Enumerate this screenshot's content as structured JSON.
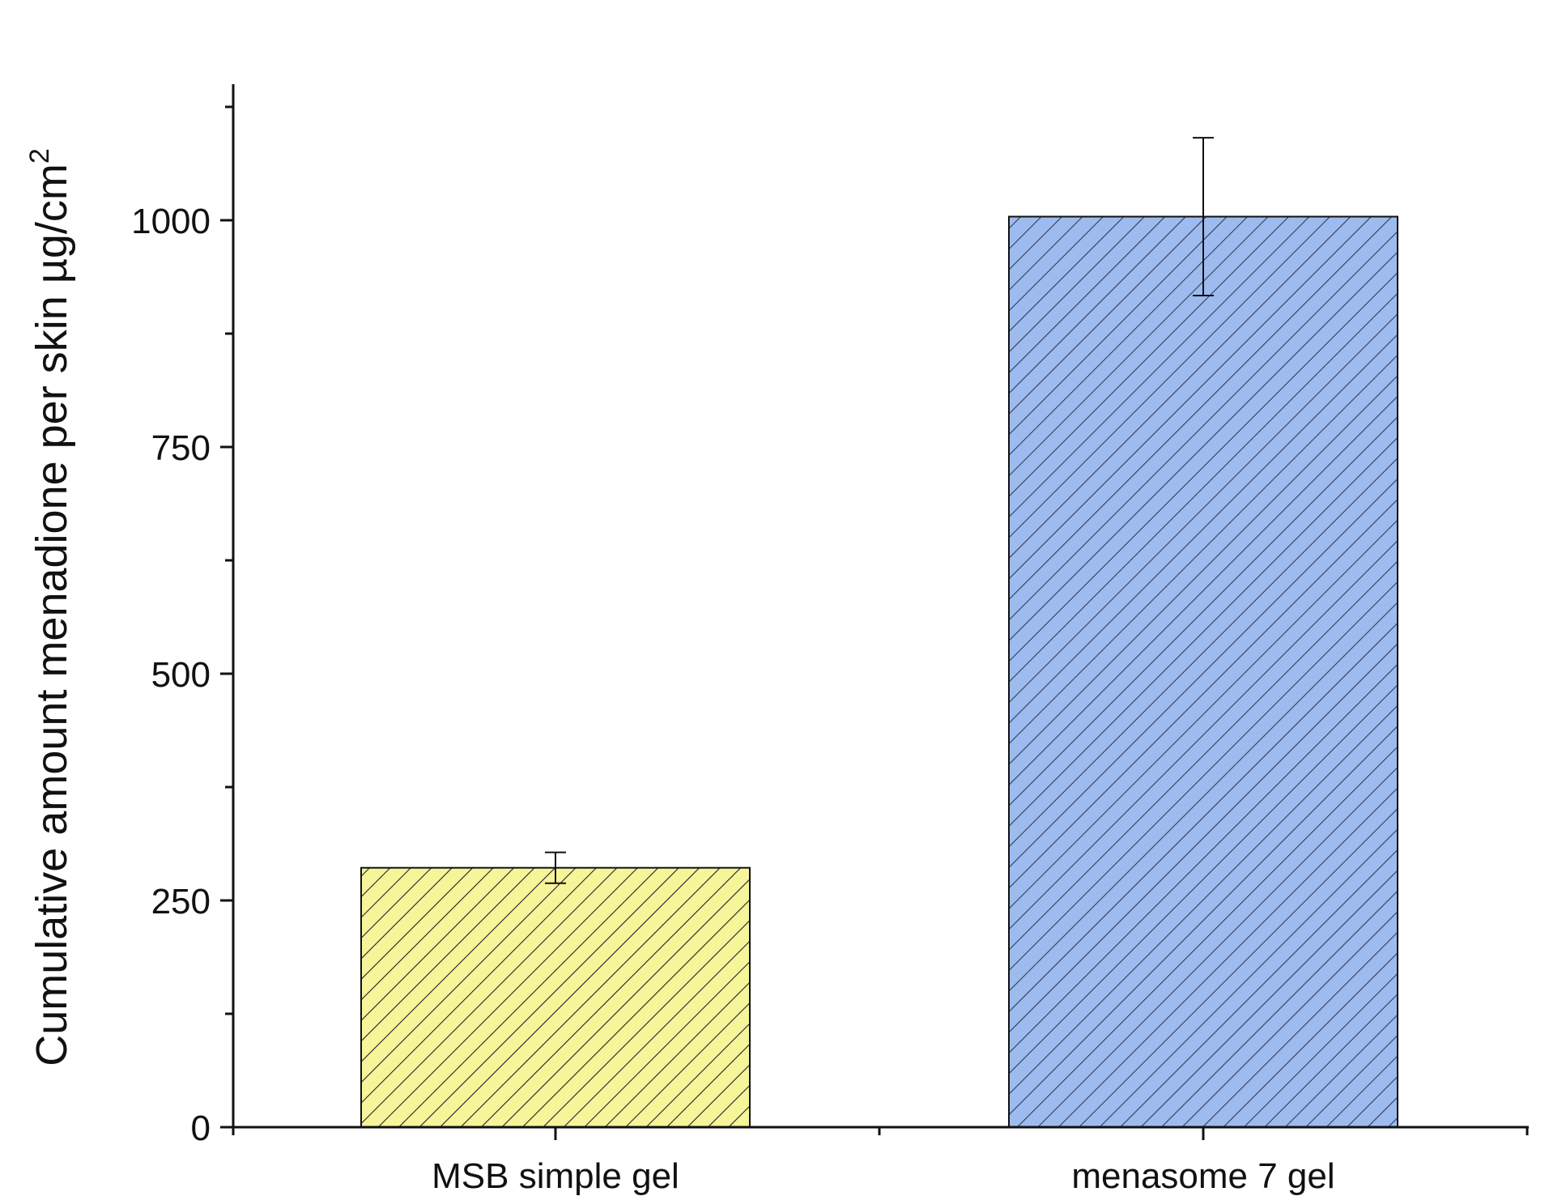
{
  "chart_data": {
    "type": "bar",
    "title": "",
    "xlabel": "",
    "ylabel": "Cumulative amount menadione per skin µg/cm",
    "ylabel_superscript": "2",
    "categories": [
      "MSB simple gel",
      "menasome 7 gel"
    ],
    "values": [
      286,
      1004
    ],
    "error": [
      17,
      87
    ],
    "ylim": [
      0,
      1150
    ],
    "yticks_major": [
      0,
      250,
      500,
      750,
      1000
    ],
    "yticks_major_labels": [
      "0",
      "250",
      "500",
      "750",
      "1000"
    ],
    "yticks_minor": [
      125,
      375,
      625,
      875,
      1125
    ],
    "grid": false,
    "legend": "none",
    "colors": {
      "bars": [
        "#f7f59a",
        "#9dbbee"
      ],
      "hatch": [
        "#222222",
        "#333a55"
      ],
      "axis": "#111111"
    }
  }
}
